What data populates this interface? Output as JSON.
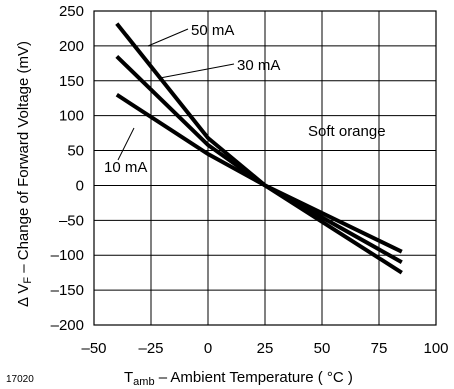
{
  "figure_id": "17020",
  "chart_data": {
    "type": "line",
    "xlabel_main": "T",
    "xlabel_sub": "amb",
    "xlabel_rest": " – Ambient Temperature ( °C )",
    "ylabel_main": "Δ V",
    "ylabel_sub": "F",
    "ylabel_rest": " – Change of Forward Voltage (mV)",
    "xlim": [
      -50,
      100
    ],
    "ylim": [
      -200,
      250
    ],
    "x_ticks": [
      -50,
      -25,
      0,
      25,
      50,
      75,
      100
    ],
    "x_tick_labels": [
      "–50",
      "–25",
      "0",
      "25",
      "50",
      "75",
      "100"
    ],
    "y_ticks": [
      -200,
      -150,
      -100,
      -50,
      0,
      50,
      100,
      150,
      200,
      250
    ],
    "y_tick_labels": [
      "–200",
      "–150",
      "–100",
      "–50",
      "0",
      "50",
      "100",
      "150",
      "200",
      "250"
    ],
    "grid": true,
    "annotation": "Soft orange",
    "series": [
      {
        "name": "50 mA",
        "x": [
          -40,
          0,
          25,
          85
        ],
        "y": [
          232,
          68,
          0,
          -125
        ]
      },
      {
        "name": "30 mA",
        "x": [
          -40,
          0,
          25,
          85
        ],
        "y": [
          185,
          58,
          0,
          -110
        ]
      },
      {
        "name": "10 mA",
        "x": [
          -40,
          0,
          25,
          85
        ],
        "y": [
          130,
          45,
          0,
          -95
        ]
      }
    ]
  }
}
